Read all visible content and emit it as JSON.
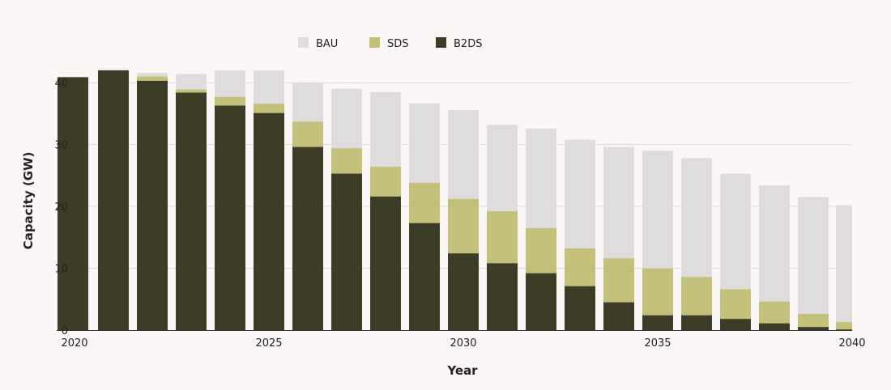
{
  "chart_data": {
    "type": "bar",
    "stacked": false,
    "overlapping": true,
    "title": "",
    "xlabel": "Year",
    "ylabel": "Capacity (GW)",
    "ylim": [
      0,
      42
    ],
    "yticks": [
      0,
      10,
      20,
      30,
      40
    ],
    "xticks": [
      2020,
      2025,
      2030,
      2035,
      2040
    ],
    "grid": true,
    "legend_position": "top-center",
    "categories": [
      2020,
      2021,
      2022,
      2023,
      2024,
      2025,
      2026,
      2027,
      2028,
      2029,
      2030,
      2031,
      2032,
      2033,
      2034,
      2035,
      2036,
      2037,
      2038,
      2039,
      2040
    ],
    "series": [
      {
        "name": "BAU",
        "color": "#dedcdd",
        "values": [
          40.9,
          42.0,
          41.6,
          41.4,
          42.0,
          42.0,
          40.0,
          39.0,
          38.5,
          36.7,
          35.6,
          33.2,
          32.6,
          30.8,
          29.6,
          29.0,
          27.8,
          25.3,
          23.4,
          21.5,
          20.2
        ]
      },
      {
        "name": "SDS",
        "color": "#c3c07b",
        "values": [
          40.9,
          42.0,
          41.0,
          38.9,
          37.7,
          36.6,
          33.7,
          29.4,
          26.4,
          23.8,
          21.2,
          19.2,
          16.5,
          13.2,
          11.6,
          10.0,
          8.6,
          6.6,
          4.6,
          2.6,
          1.3
        ]
      },
      {
        "name": "B2DS",
        "color": "#3c3c27",
        "values": [
          40.9,
          42.0,
          40.3,
          38.4,
          36.3,
          35.1,
          29.6,
          25.3,
          21.6,
          17.3,
          12.4,
          10.8,
          9.2,
          7.1,
          4.5,
          2.4,
          2.4,
          1.8,
          1.1,
          0.5,
          0.1
        ]
      }
    ]
  }
}
